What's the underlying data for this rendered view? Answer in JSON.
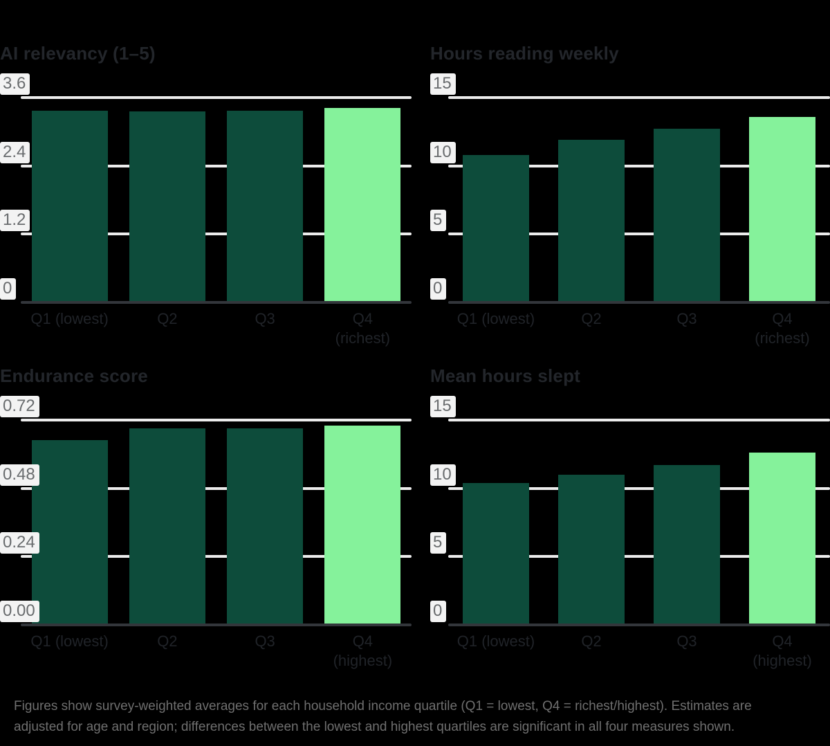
{
  "colors": {
    "bar": "#0d4c3b",
    "highlight_bar": "#85f29b",
    "gridline": "#ececec",
    "axis_line": "#33363b",
    "tick_label": "#696c6e",
    "tick_chip_bg": "#f3f3f3",
    "title": "#23262b",
    "category_label": "#202328",
    "footnote": "#6f6f6f",
    "background": "#000000"
  },
  "footnote": {
    "line1": "Figures show survey-weighted averages for each household income quartile (Q1 = lowest, Q4 = richest/highest). Estimates are",
    "line2": "adjusted for age and region; differences between the lowest and highest quartiles are significant in all four measures shown."
  },
  "chart_data": [
    {
      "type": "bar",
      "title": "AI relevancy (1–5)",
      "categories": [
        "Q1 (lowest)",
        "Q2",
        "Q3",
        "Q4\n(richest)"
      ],
      "values": [
        3.37,
        3.36,
        3.37,
        3.42
      ],
      "highlight_index": 3,
      "ylim": [
        0,
        3.6
      ],
      "ytick_values": [
        0,
        1.2,
        2.4,
        3.6
      ],
      "yticks": [
        "0",
        "1.2",
        "2.4",
        "3.6"
      ],
      "xlabel": "",
      "ylabel": "",
      "grid": true,
      "legend": "none"
    },
    {
      "type": "bar",
      "title": "Hours reading weekly",
      "categories": [
        "Q1 (lowest)",
        "Q2",
        "Q3",
        "Q4\n(richest)"
      ],
      "values": [
        10.8,
        11.9,
        12.7,
        13.6
      ],
      "highlight_index": 3,
      "ylim": [
        0,
        15
      ],
      "ytick_values": [
        0,
        5,
        10,
        15
      ],
      "yticks": [
        "0",
        "5",
        "10",
        "15"
      ],
      "xlabel": "",
      "ylabel": "",
      "grid": true,
      "legend": "none"
    },
    {
      "type": "bar",
      "title": "Endurance score",
      "categories": [
        "Q1 (lowest)",
        "Q2",
        "Q3",
        "Q4\n(highest)"
      ],
      "values": [
        0.65,
        0.69,
        0.69,
        0.7
      ],
      "highlight_index": 3,
      "ylim": [
        0,
        0.72
      ],
      "ytick_values": [
        0,
        0.24,
        0.48,
        0.72
      ],
      "yticks": [
        "0.00",
        "0.24",
        "0.48",
        "0.72"
      ],
      "xlabel": "",
      "ylabel": "",
      "grid": true,
      "legend": "none"
    },
    {
      "type": "bar",
      "title": "Mean hours slept",
      "categories": [
        "Q1 (lowest)",
        "Q2",
        "Q3",
        "Q4\n(highest)"
      ],
      "values": [
        10.4,
        11.0,
        11.7,
        12.6
      ],
      "highlight_index": 3,
      "ylim": [
        0,
        15
      ],
      "ytick_values": [
        0,
        5,
        10,
        15
      ],
      "yticks": [
        "0",
        "5",
        "10",
        "15"
      ],
      "xlabel": "",
      "ylabel": "",
      "grid": true,
      "legend": "none"
    }
  ]
}
